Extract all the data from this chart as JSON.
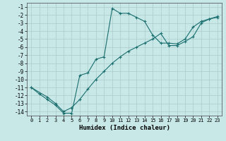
{
  "xlabel": "Humidex (Indice chaleur)",
  "background_color": "#c8e8e8",
  "grid_color": "#b0d0d0",
  "line_color": "#1a6e6e",
  "xlim": [
    -0.5,
    23.5
  ],
  "ylim": [
    -14.5,
    -0.5
  ],
  "xticks": [
    0,
    1,
    2,
    3,
    4,
    5,
    6,
    7,
    8,
    9,
    10,
    11,
    12,
    13,
    14,
    15,
    16,
    17,
    18,
    19,
    20,
    21,
    22,
    23
  ],
  "yticks": [
    -1,
    -2,
    -3,
    -4,
    -5,
    -6,
    -7,
    -8,
    -9,
    -10,
    -11,
    -12,
    -13,
    -14
  ],
  "line1_x": [
    0,
    1,
    2,
    3,
    4,
    5,
    6,
    7,
    8,
    9,
    10,
    11,
    12,
    13,
    14,
    15,
    16,
    17,
    18,
    19,
    20,
    21,
    22,
    23
  ],
  "line1_y": [
    -11.0,
    -11.8,
    -12.5,
    -13.2,
    -14.2,
    -14.2,
    -9.5,
    -9.2,
    -7.5,
    -7.2,
    -1.2,
    -1.8,
    -1.8,
    -2.3,
    -2.8,
    -4.5,
    -5.5,
    -5.5,
    -5.6,
    -5.0,
    -3.5,
    -2.8,
    -2.5,
    -2.3
  ],
  "line2_x": [
    0,
    2,
    3,
    4,
    5,
    6,
    7,
    8,
    9,
    10,
    11,
    12,
    13,
    14,
    15,
    16,
    17,
    18,
    19,
    20,
    21,
    22,
    23
  ],
  "line2_y": [
    -11.0,
    -12.2,
    -13.0,
    -14.0,
    -13.5,
    -12.5,
    -11.2,
    -10.0,
    -9.0,
    -8.0,
    -7.2,
    -6.5,
    -6.0,
    -5.5,
    -5.0,
    -4.3,
    -5.8,
    -5.8,
    -5.3,
    -4.7,
    -3.0,
    -2.5,
    -2.2
  ]
}
